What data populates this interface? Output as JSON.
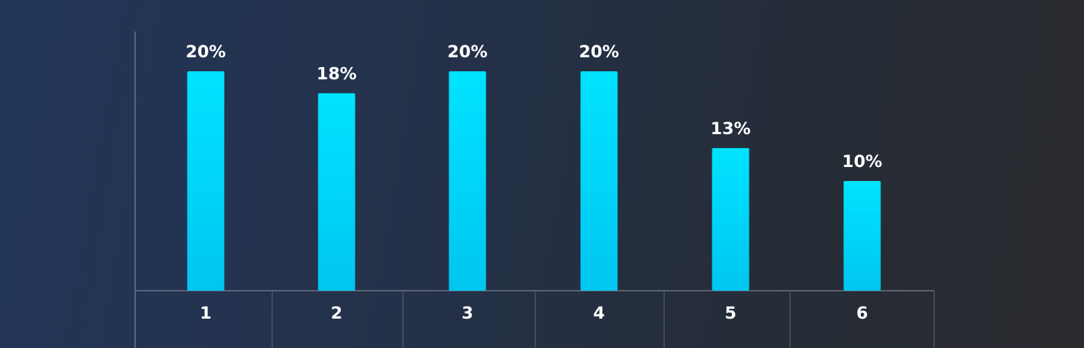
{
  "chart_data": {
    "type": "bar",
    "categories": [
      "1",
      "2",
      "3",
      "4",
      "5",
      "6"
    ],
    "values": [
      20,
      18,
      20,
      20,
      13,
      10
    ],
    "value_labels": [
      "20%",
      "18%",
      "20%",
      "20%",
      "13%",
      "10%"
    ],
    "title": "",
    "xlabel": "",
    "ylabel": "",
    "ylim": [
      0,
      20
    ],
    "grid": false,
    "legend": "none",
    "bar_color_top": "#00e3ff",
    "bar_color_bottom": "#00c6f0"
  }
}
